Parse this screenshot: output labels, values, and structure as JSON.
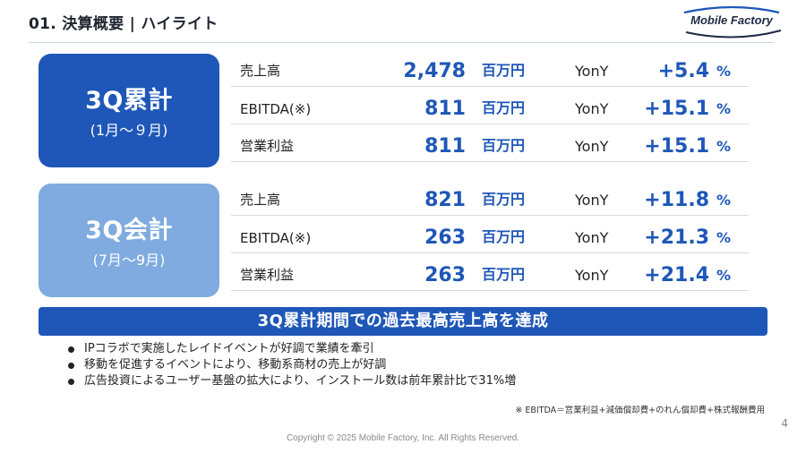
{
  "header": {
    "title": "01. 決算概要 | ハイライト",
    "logo_text": "Mobile Factory"
  },
  "sections": [
    {
      "label": "3Q累計",
      "range": "(1月～９月)",
      "rows": [
        {
          "metric": "売上高",
          "amount": "2,478",
          "unit": "百万円",
          "yony": "YonY",
          "pct": "+5.4",
          "pct_sign": "%"
        },
        {
          "metric": "EBITDA(※)",
          "amount": "811",
          "unit": "百万円",
          "yony": "YonY",
          "pct": "+15.1",
          "pct_sign": "%"
        },
        {
          "metric": "営業利益",
          "amount": "811",
          "unit": "百万円",
          "yony": "YonY",
          "pct": "+15.1",
          "pct_sign": "%"
        }
      ]
    },
    {
      "label": "3Q会計",
      "range": "(7月～9月)",
      "rows": [
        {
          "metric": "売上高",
          "amount": "821",
          "unit": "百万円",
          "yony": "YonY",
          "pct": "+11.8",
          "pct_sign": "%"
        },
        {
          "metric": "EBITDA(※)",
          "amount": "263",
          "unit": "百万円",
          "yony": "YonY",
          "pct": "+21.3",
          "pct_sign": "%"
        },
        {
          "metric": "営業利益",
          "amount": "263",
          "unit": "百万円",
          "yony": "YonY",
          "pct": "+21.4",
          "pct_sign": "%"
        }
      ]
    }
  ],
  "banner": "3Q累計期間での過去最高売上高を達成",
  "bullets": [
    "IPコラボで実施したレイドイベントが好調で業績を牽引",
    "移動を促進するイベントにより、移動系商材の売上が好調",
    "広告投資によるユーザー基盤の拡大により、インストール数は前年累計比で31%増"
  ],
  "footnote": "※ EBITDA＝営業利益+減価償却費+のれん償却費+株式報酬費用",
  "page_number": "4",
  "copyright": "Copyright © 2025 Mobile Factory, Inc. All Rights Reserved.",
  "colors": {
    "primary_blue": "#1e57b8",
    "light_blue": "#7fabe0"
  }
}
